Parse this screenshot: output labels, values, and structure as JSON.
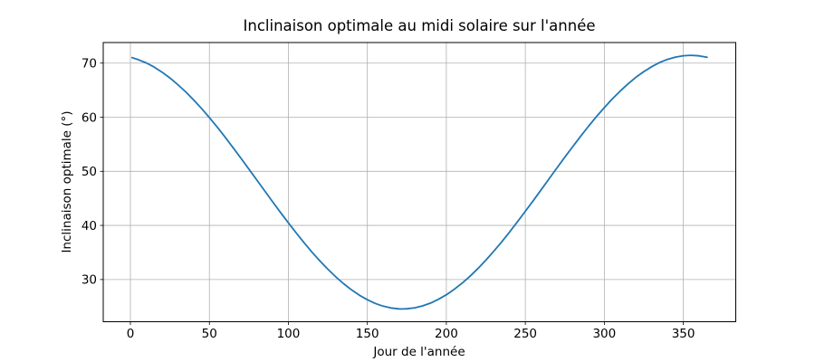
{
  "figure": {
    "background_color": "#ffffff"
  },
  "chart_data": {
    "type": "line",
    "title": "Inclinaison optimale au midi solaire sur l'année",
    "xlabel": "Jour de l'année",
    "ylabel": "Inclinaison optimale (°)",
    "xlim": [
      -17.2,
      383.2
    ],
    "ylim": [
      22.2,
      73.8
    ],
    "x_ticks": [
      0,
      50,
      100,
      150,
      200,
      250,
      300,
      350
    ],
    "y_ticks": [
      30,
      40,
      50,
      60,
      70
    ],
    "grid": true,
    "grid_color": "#b0b0b0",
    "spine_color": "#000000",
    "line_color": "#1f77b4",
    "line_width": 1.8,
    "legend": "none",
    "series": [
      {
        "name": "Inclinaison optimale au midi solaire",
        "x": [
          1,
          5,
          10,
          15,
          20,
          25,
          30,
          35,
          40,
          45,
          50,
          55,
          60,
          65,
          70,
          75,
          80,
          85,
          90,
          95,
          100,
          105,
          110,
          115,
          120,
          125,
          130,
          135,
          140,
          145,
          150,
          155,
          160,
          165,
          170,
          172,
          175,
          180,
          185,
          190,
          195,
          200,
          205,
          210,
          215,
          220,
          225,
          230,
          235,
          240,
          245,
          250,
          255,
          260,
          265,
          270,
          275,
          280,
          285,
          290,
          295,
          300,
          305,
          310,
          315,
          320,
          325,
          330,
          335,
          340,
          345,
          350,
          355,
          360,
          365
        ],
        "y": [
          71.0,
          70.64,
          70.03,
          69.26,
          68.33,
          67.26,
          66.03,
          64.68,
          63.2,
          61.62,
          59.93,
          58.14,
          56.29,
          54.37,
          52.41,
          50.42,
          48.4,
          46.39,
          44.38,
          42.41,
          40.47,
          38.59,
          36.78,
          35.05,
          33.42,
          31.9,
          30.49,
          29.22,
          28.08,
          27.09,
          26.26,
          25.58,
          25.08,
          24.74,
          24.58,
          24.56,
          24.59,
          24.77,
          25.12,
          25.65,
          26.34,
          27.18,
          28.18,
          29.34,
          30.62,
          32.04,
          33.58,
          35.22,
          36.96,
          38.77,
          40.66,
          42.6,
          44.58,
          46.59,
          48.61,
          50.62,
          52.61,
          54.57,
          56.48,
          58.33,
          60.1,
          61.78,
          63.36,
          64.82,
          66.16,
          67.37,
          68.43,
          69.34,
          70.1,
          70.69,
          71.11,
          71.36,
          71.44,
          71.34,
          71.08
        ]
      }
    ]
  }
}
